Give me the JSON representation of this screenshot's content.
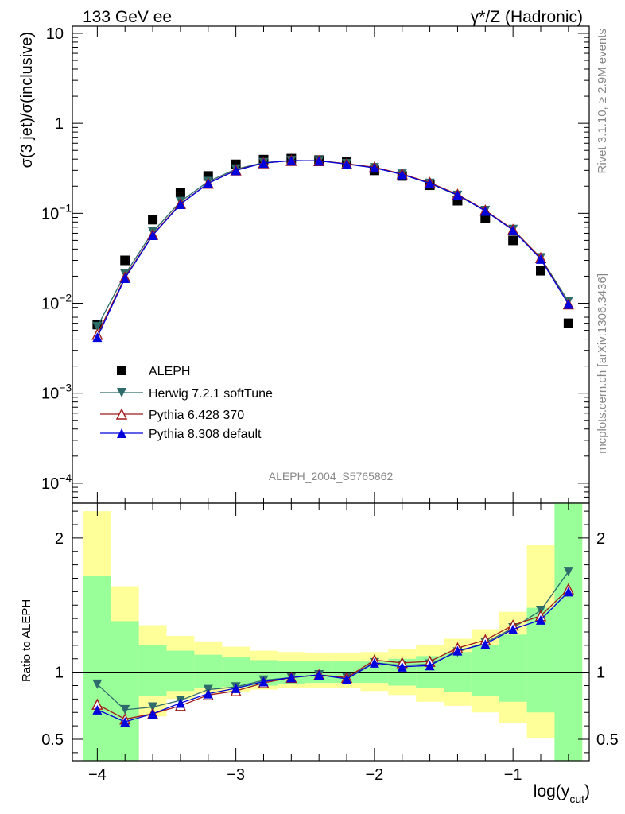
{
  "header": {
    "left_title": "133 GeV ee",
    "right_title": "γ*/Z (Hadronic)"
  },
  "side_labels": {
    "rivet": "Rivet 3.1.10, ≥ 2.9M events",
    "mcplots": "mcplots.cern.ch [arXiv:1306.3436]"
  },
  "watermark": "ALEPH_2004_S5765862",
  "colors": {
    "aleph": "#000000",
    "herwig": "#2e6b6b",
    "pythia6": "#a01a1a",
    "pythia8": "#0000dd",
    "band_inner": "#99ff99",
    "band_outer": "#ffff99"
  },
  "chart_data": [
    {
      "type": "scatter",
      "panel": "main",
      "ylabel": "σ(3 jet)/σ(inclusive)",
      "y_scale": "log",
      "ylim": [
        6e-05,
        12
      ],
      "xlim": [
        -4.18,
        -0.45
      ],
      "y_ticks": [
        "10",
        "1",
        "10^-1",
        "10^-2",
        "10^-3",
        "10^-4"
      ],
      "legend_position": "lower-left",
      "x": [
        -4.0,
        -3.8,
        -3.6,
        -3.4,
        -3.2,
        -3.0,
        -2.8,
        -2.6,
        -2.4,
        -2.2,
        -2.0,
        -1.8,
        -1.6,
        -1.4,
        -1.2,
        -1.0,
        -0.8,
        -0.6
      ],
      "series": [
        {
          "name": "ALEPH",
          "marker": "square",
          "values": [
            0.0058,
            0.03,
            0.085,
            0.17,
            0.26,
            0.35,
            0.395,
            0.405,
            0.39,
            0.37,
            0.3,
            0.26,
            0.205,
            0.138,
            0.088,
            0.05,
            0.023,
            0.006
          ]
        },
        {
          "name": "Herwig 7.2.1 softTune",
          "marker": "triangle-down",
          "values": [
            0.0055,
            0.021,
            0.062,
            0.135,
            0.225,
            0.31,
            0.365,
            0.385,
            0.383,
            0.355,
            0.32,
            0.272,
            0.215,
            0.158,
            0.107,
            0.066,
            0.032,
            0.0105
          ]
        },
        {
          "name": "Pythia 6.428 370",
          "marker": "triangle-up-open",
          "values": [
            0.0045,
            0.0195,
            0.058,
            0.128,
            0.215,
            0.302,
            0.362,
            0.385,
            0.383,
            0.355,
            0.325,
            0.274,
            0.219,
            0.162,
            0.108,
            0.066,
            0.032,
            0.0098
          ]
        },
        {
          "name": "Pythia 8.308 default",
          "marker": "triangle-up",
          "values": [
            0.0042,
            0.019,
            0.057,
            0.126,
            0.215,
            0.3,
            0.362,
            0.385,
            0.383,
            0.352,
            0.32,
            0.27,
            0.215,
            0.16,
            0.106,
            0.065,
            0.031,
            0.0098
          ]
        }
      ]
    },
    {
      "type": "line",
      "panel": "ratio",
      "ylabel": "Ratio to ALEPH",
      "xlabel": "log(y_cut)",
      "ylim": [
        0.34,
        2.26
      ],
      "xlim": [
        -4.18,
        -0.45
      ],
      "y_ticks": [
        "0.5",
        "1",
        "2"
      ],
      "x_ticks": [
        "−4",
        "−3",
        "−2",
        "−1"
      ],
      "reference_line": 1,
      "x": [
        -4.0,
        -3.8,
        -3.6,
        -3.4,
        -3.2,
        -3.0,
        -2.8,
        -2.6,
        -2.4,
        -2.2,
        -2.0,
        -1.8,
        -1.6,
        -1.4,
        -1.2,
        -1.0,
        -0.8,
        -0.6
      ],
      "bin_edges": [
        -4.1,
        -3.9,
        -3.7,
        -3.5,
        -3.3,
        -3.1,
        -2.9,
        -2.7,
        -2.5,
        -2.3,
        -2.1,
        -1.9,
        -1.7,
        -1.5,
        -1.3,
        -1.1,
        -0.9,
        -0.7,
        -0.5
      ],
      "band_inner": {
        "low": [
          0.34,
          0.34,
          0.82,
          0.86,
          0.88,
          0.89,
          0.9,
          0.91,
          0.92,
          0.92,
          0.92,
          0.9,
          0.88,
          0.85,
          0.82,
          0.78,
          0.7,
          0.34
        ],
        "high": [
          1.72,
          1.38,
          1.2,
          1.16,
          1.13,
          1.11,
          1.09,
          1.08,
          1.08,
          1.08,
          1.08,
          1.1,
          1.12,
          1.15,
          1.2,
          1.28,
          1.48,
          2.26
        ]
      },
      "band_outer": {
        "low": [
          0.34,
          0.34,
          0.67,
          0.8,
          0.84,
          0.85,
          0.87,
          0.88,
          0.88,
          0.88,
          0.86,
          0.83,
          0.78,
          0.75,
          0.7,
          0.62,
          0.51,
          0.34
        ],
        "high": [
          2.2,
          1.64,
          1.35,
          1.27,
          1.23,
          1.19,
          1.16,
          1.15,
          1.14,
          1.14,
          1.15,
          1.17,
          1.2,
          1.25,
          1.32,
          1.45,
          1.95,
          2.26
        ]
      },
      "series": [
        {
          "name": "Herwig 7.2.1 softTune",
          "values": [
            0.91,
            0.72,
            0.74,
            0.79,
            0.87,
            0.89,
            0.94,
            0.96,
            0.98,
            0.96,
            1.07,
            1.05,
            1.06,
            1.15,
            1.22,
            1.33,
            1.46,
            1.75
          ]
        },
        {
          "name": "Pythia 6.428 370",
          "values": [
            0.76,
            0.65,
            0.69,
            0.75,
            0.83,
            0.86,
            0.92,
            0.96,
            0.98,
            0.96,
            1.09,
            1.07,
            1.08,
            1.18,
            1.24,
            1.35,
            1.42,
            1.62
          ]
        },
        {
          "name": "Pythia 8.308 default",
          "values": [
            0.72,
            0.63,
            0.69,
            0.77,
            0.84,
            0.88,
            0.93,
            0.96,
            0.98,
            0.95,
            1.07,
            1.04,
            1.05,
            1.16,
            1.21,
            1.32,
            1.39,
            1.6
          ]
        }
      ]
    }
  ]
}
